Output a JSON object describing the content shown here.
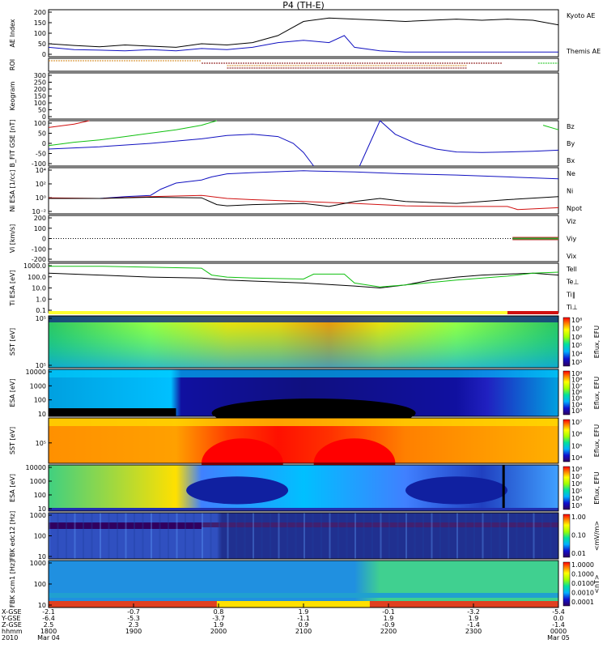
{
  "title": "P4 (TH-E)",
  "colors": {
    "black": "#000000",
    "blue": "#1010c0",
    "red": "#d01010",
    "green": "#10c010",
    "orange": "#d08010",
    "roi_brown": "#800000"
  },
  "chart_data": [
    {
      "type": "line",
      "name": "AE Index",
      "ylabel": "AE Index",
      "ylim": [
        0,
        200
      ],
      "yticks": [
        "200",
        "150",
        "100",
        "50",
        "0"
      ],
      "legend": [
        "Kyoto AE",
        "Themis AE"
      ],
      "series": [
        {
          "name": "Kyoto AE",
          "color": "#000000",
          "x": [
            0,
            0.05,
            0.1,
            0.15,
            0.2,
            0.25,
            0.3,
            0.35,
            0.4,
            0.45,
            0.5,
            0.55,
            0.6,
            0.65,
            0.7,
            0.75,
            0.8,
            0.85,
            0.9,
            0.95,
            1
          ],
          "values": [
            55,
            48,
            42,
            50,
            45,
            40,
            55,
            50,
            60,
            90,
            150,
            165,
            160,
            155,
            150,
            155,
            160,
            155,
            160,
            155,
            135
          ]
        },
        {
          "name": "Themis AE",
          "color": "#1010c0",
          "x": [
            0,
            0.05,
            0.1,
            0.15,
            0.2,
            0.25,
            0.3,
            0.35,
            0.4,
            0.45,
            0.5,
            0.55,
            0.58,
            0.6,
            0.65,
            0.7,
            0.75,
            0.8,
            0.85,
            0.9,
            0.95,
            1
          ],
          "values": [
            40,
            30,
            28,
            25,
            30,
            25,
            35,
            30,
            40,
            60,
            70,
            60,
            90,
            40,
            25,
            20,
            20,
            20,
            20,
            20,
            20,
            20
          ]
        }
      ]
    },
    {
      "type": "line",
      "name": "ROI",
      "ylabel": "ROI",
      "segments": [
        {
          "color": "#d08010",
          "x0": 0.0,
          "x1": 0.3,
          "row": 0
        },
        {
          "color": "#800000",
          "x0": 0.3,
          "x1": 0.89,
          "row": 1
        },
        {
          "color": "#d08010",
          "x0": 0.35,
          "x1": 0.82,
          "row": 2
        },
        {
          "color": "#800000",
          "x0": 0.35,
          "x1": 0.82,
          "row": 3
        },
        {
          "color": "#10c010",
          "x0": 0.96,
          "x1": 1.0,
          "row": 1
        }
      ]
    },
    {
      "type": "line",
      "name": "Keogram",
      "ylabel": "Keogram",
      "ylim": [
        0,
        300
      ],
      "yticks": [
        "300",
        "250",
        "200",
        "150",
        "100",
        "50",
        "0"
      ]
    },
    {
      "type": "line",
      "name": "B_FIT",
      "ylabel": "B_FIT GSE [nT]",
      "ylim": [
        -100,
        100
      ],
      "yticks": [
        "100",
        "50",
        "0",
        "-50",
        "-100"
      ],
      "legend": [
        "Bz",
        "By",
        "Bx"
      ],
      "series": [
        {
          "name": "Bz",
          "color": "#d01010",
          "x": [
            0,
            0.05,
            0.08
          ],
          "values": [
            70,
            85,
            100
          ]
        },
        {
          "name": "By",
          "color": "#10c010",
          "x": [
            0,
            0.05,
            0.1,
            0.15,
            0.2,
            0.25,
            0.3,
            0.33
          ],
          "values": [
            -10,
            5,
            15,
            30,
            45,
            60,
            80,
            100
          ]
        },
        {
          "name": "By",
          "color": "#10c010",
          "x": [
            0.97,
            1.0
          ],
          "values": [
            80,
            60
          ]
        },
        {
          "name": "Bx",
          "color": "#1010c0",
          "x": [
            0,
            0.1,
            0.2,
            0.3,
            0.35,
            0.4,
            0.45,
            0.48,
            0.5,
            0.52
          ],
          "values": [
            -25,
            -15,
            0,
            20,
            35,
            40,
            30,
            0,
            -40,
            -100
          ]
        },
        {
          "name": "Bx",
          "color": "#1010c0",
          "x": [
            0.61,
            0.63,
            0.65,
            0.68,
            0.72,
            0.76,
            0.8,
            0.85,
            0.9,
            0.95,
            1.0
          ],
          "values": [
            -100,
            0,
            100,
            40,
            0,
            -25,
            -38,
            -40,
            -38,
            -35,
            -30
          ]
        }
      ]
    },
    {
      "type": "line",
      "name": "Density",
      "ylabel": "Ni ESA [1/cc]",
      "ylim_log": [
        -2.5,
        5
      ],
      "yticks": [
        "10⁴",
        "10²",
        "10⁰",
        "10⁻²"
      ],
      "legend": [
        "Ne",
        "Ni",
        "Npot"
      ],
      "series": [
        {
          "name": "Ni",
          "color": "#1010c0",
          "x": [
            0,
            0.1,
            0.15,
            0.2,
            0.22,
            0.25,
            0.3,
            0.32,
            0.35,
            0.4,
            0.5,
            0.6,
            0.7,
            0.8,
            0.9,
            1.0
          ],
          "values": [
            0,
            0,
            0.3,
            0.5,
            1.5,
            2.5,
            3,
            3.5,
            4,
            4.2,
            4.5,
            4.3,
            4,
            3.8,
            3.5,
            3.2
          ]
        },
        {
          "name": "Ne",
          "color": "#d01010",
          "x": [
            0,
            0.1,
            0.2,
            0.3,
            0.32,
            0.35,
            0.4,
            0.5,
            0.6,
            0.7,
            0.8,
            0.9,
            0.92,
            1.0
          ],
          "values": [
            0.1,
            0,
            0.3,
            0.5,
            0.3,
            0,
            -0.2,
            -0.5,
            -0.8,
            -1.2,
            -1.3,
            -1.3,
            -1.8,
            -1.5
          ]
        },
        {
          "name": "Npot",
          "color": "#000000",
          "x": [
            0,
            0.1,
            0.2,
            0.3,
            0.33,
            0.35,
            0.4,
            0.5,
            0.55,
            0.6,
            0.65,
            0.7,
            0.8,
            0.9,
            1.0
          ],
          "values": [
            0,
            0,
            0.2,
            0.1,
            -1,
            -1.2,
            -1,
            -0.8,
            -1.3,
            -0.5,
            0,
            -0.5,
            -0.8,
            -0.2,
            0.3
          ]
        }
      ]
    },
    {
      "type": "line",
      "name": "Velocity",
      "ylabel": "Vi [km/s]",
      "ylim": [
        -300,
        300
      ],
      "yticks": [
        "200",
        "100",
        "0",
        "-100",
        "-200"
      ],
      "legend": [
        "Viz",
        "Viy",
        "Vix"
      ]
    },
    {
      "type": "line",
      "name": "Temperature",
      "ylabel": "Ti ESA [eV]",
      "ylim_log": [
        -1.3,
        3.7
      ],
      "yticks": [
        "1000.0",
        "100.0",
        "10.0",
        "1.0",
        "0.1"
      ],
      "legend": [
        "Tell",
        "Te⊥",
        "Ti‖",
        "Ti⊥"
      ],
      "series": [
        {
          "name": "Tell",
          "color": "#000000",
          "x": [
            0,
            0.1,
            0.2,
            0.3,
            0.35,
            0.4,
            0.5,
            0.6,
            0.65,
            0.7,
            0.75,
            0.8,
            0.85,
            0.9,
            0.95,
            1.0
          ],
          "values": [
            2.7,
            2.5,
            2.3,
            2.2,
            2.0,
            1.9,
            1.7,
            1.4,
            1.2,
            1.5,
            2.0,
            2.3,
            2.5,
            2.6,
            2.7,
            2.5
          ]
        },
        {
          "name": "Ti‖",
          "color": "#10c010",
          "x": [
            0,
            0.1,
            0.2,
            0.3,
            0.32,
            0.35,
            0.4,
            0.5,
            0.52,
            0.55,
            0.58,
            0.6,
            0.65,
            0.7,
            0.8,
            0.9,
            0.95,
            1.0
          ],
          "values": [
            3.4,
            3.4,
            3.3,
            3.2,
            2.5,
            2.3,
            2.2,
            2.1,
            2.6,
            2.6,
            2.6,
            1.7,
            1.3,
            1.5,
            2.0,
            2.4,
            2.7,
            2.8
          ]
        }
      ]
    },
    {
      "type": "heatmap",
      "name": "SST electron",
      "ylabel": "SST [eV]",
      "yticks": [
        "10⁵",
        "10⁵"
      ],
      "colorbar_label": "Eflux, EFU",
      "colorbar_ticks": [
        "10⁸",
        "10⁷",
        "10⁶",
        "10⁵",
        "10⁴",
        "10³"
      ]
    },
    {
      "type": "heatmap",
      "name": "ESA electron",
      "ylabel": "ESA [eV]",
      "yticks": [
        "10000",
        "1000",
        "100",
        "10"
      ],
      "colorbar_label": "Eflux, EFU",
      "colorbar_ticks": [
        "10⁹",
        "10⁸",
        "10⁷",
        "10⁶",
        "10⁵",
        "10⁴",
        "10³"
      ]
    },
    {
      "type": "heatmap",
      "name": "SST ion",
      "ylabel": "SST [eV]",
      "yticks": [
        "10⁵"
      ],
      "colorbar_label": "Eflux, EFU",
      "colorbar_ticks": [
        "10⁷",
        "10⁶",
        "10⁵",
        "10⁴"
      ]
    },
    {
      "type": "heatmap",
      "name": "ESA ion",
      "ylabel": "ESA [eV]",
      "yticks": [
        "10000",
        "1000",
        "100",
        "10"
      ],
      "colorbar_label": "Eflux, EFU",
      "colorbar_ticks": [
        "10⁸",
        "10⁷",
        "10⁶",
        "10⁵",
        "10⁴",
        "10³"
      ]
    },
    {
      "type": "heatmap",
      "name": "FBK edc12",
      "ylabel": "FBK edc12 [Hz]",
      "yticks": [
        "1000",
        "100",
        "10"
      ],
      "colorbar_label": "<mV/m>",
      "colorbar_ticks": [
        "1.00",
        "0.10",
        "0.01"
      ]
    },
    {
      "type": "heatmap",
      "name": "FBK scm1",
      "ylabel": "FBK scm1 [Hz]",
      "yticks": [
        "1000",
        "100",
        "10"
      ],
      "colorbar_label": "<nT>",
      "colorbar_ticks": [
        "1.0000",
        "0.1000",
        "0.0100",
        "0.0010",
        "0.0001"
      ]
    }
  ],
  "xaxis": {
    "row_labels": [
      "X-GSE",
      "Y-GSE",
      "Z-GSE",
      "hhmm",
      "2010"
    ],
    "ticks": [
      {
        "X": "-2.1",
        "Y": "-6.4",
        "Z": "2.5",
        "hhmm": "1800",
        "date": "Mar 04"
      },
      {
        "X": "-0.7",
        "Y": "-5.3",
        "Z": "2.3",
        "hhmm": "1900",
        "date": ""
      },
      {
        "X": "0.8",
        "Y": "-3.7",
        "Z": "1.9",
        "hhmm": "2000",
        "date": ""
      },
      {
        "X": "1.9",
        "Y": "-1.1",
        "Z": "0.9",
        "hhmm": "2100",
        "date": ""
      },
      {
        "X": "-0.1",
        "Y": "1.9",
        "Z": "-0.9",
        "hhmm": "2200",
        "date": ""
      },
      {
        "X": "-3.2",
        "Y": "1.9",
        "Z": "-1.4",
        "hhmm": "2300",
        "date": ""
      },
      {
        "X": "-5.4",
        "Y": "0.0",
        "Z": "-1.4",
        "hhmm": "0000",
        "date": "Mar 05"
      }
    ]
  }
}
